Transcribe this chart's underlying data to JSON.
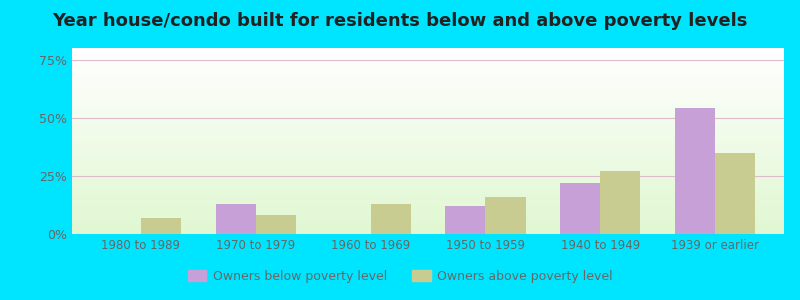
{
  "title": "Year house/condo built for residents below and above poverty levels",
  "categories": [
    "1980 to 1989",
    "1970 to 1979",
    "1960 to 1969",
    "1950 to 1959",
    "1940 to 1949",
    "1939 or earlier"
  ],
  "below_poverty": [
    0.0,
    13.0,
    0.0,
    12.0,
    22.0,
    54.0
  ],
  "above_poverty": [
    7.0,
    8.0,
    13.0,
    16.0,
    27.0,
    35.0
  ],
  "below_color": "#c8a0d8",
  "above_color": "#c8cc90",
  "yticks": [
    0,
    25,
    50,
    75
  ],
  "ylim": [
    0,
    80
  ],
  "outer_background": "#00e5ff",
  "title_fontsize": 13,
  "legend_below_label": "Owners below poverty level",
  "legend_above_label": "Owners above poverty level",
  "bar_width": 0.35
}
